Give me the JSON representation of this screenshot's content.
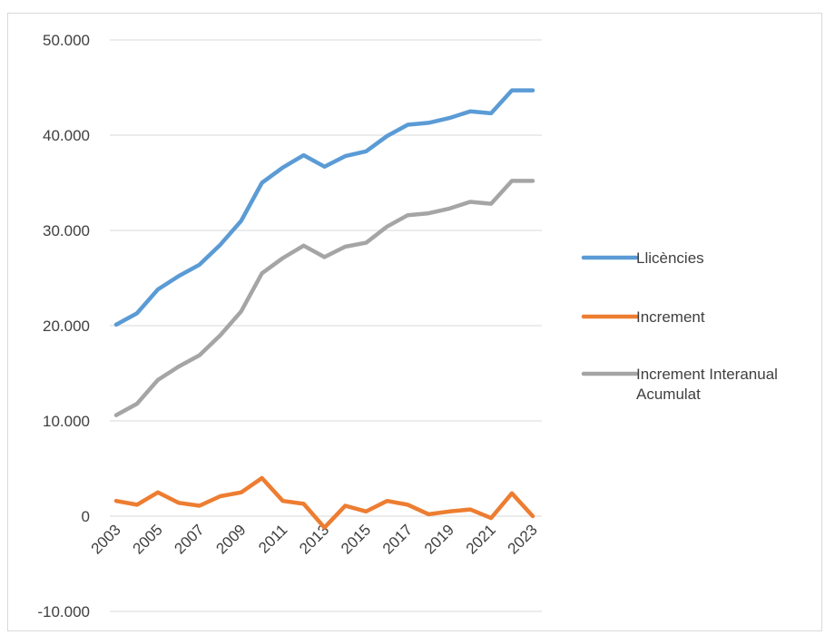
{
  "chart_data": {
    "type": "line",
    "title": "",
    "xlabel": "",
    "ylabel": "",
    "x": [
      2003,
      2004,
      2005,
      2006,
      2007,
      2008,
      2009,
      2010,
      2011,
      2012,
      2013,
      2014,
      2015,
      2016,
      2017,
      2018,
      2019,
      2020,
      2021,
      2022,
      2023
    ],
    "x_tick_labels": [
      "2003",
      "2005",
      "2007",
      "2009",
      "2011",
      "2013",
      "2015",
      "2017",
      "2019",
      "2021",
      "2023"
    ],
    "ylim": [
      -10000,
      50000
    ],
    "y_ticks": [
      -10000,
      0,
      10000,
      20000,
      30000,
      40000,
      50000
    ],
    "y_tick_labels": [
      "-10.000",
      "0",
      "10.000",
      "20.000",
      "30.000",
      "40.000",
      "50.000"
    ],
    "grid": "horizontal",
    "legend_position": "right",
    "series": [
      {
        "name": "Llicències",
        "color": "#5b9bd5",
        "values": [
          20100,
          21300,
          23800,
          25200,
          26400,
          28500,
          31000,
          35000,
          36600,
          37900,
          36700,
          37800,
          38300,
          39900,
          41100,
          41300,
          41800,
          42500,
          42300,
          44700,
          44700
        ]
      },
      {
        "name": "Increment",
        "color": "#ed7d31",
        "values": [
          1600,
          1200,
          2500,
          1400,
          1100,
          2100,
          2500,
          4000,
          1600,
          1300,
          -1200,
          1100,
          500,
          1600,
          1200,
          200,
          500,
          700,
          -200,
          2400,
          0
        ]
      },
      {
        "name": "Increment Interanual Acumulat",
        "legend_lines": [
          "Increment Interanual",
          "Acumulat"
        ],
        "color": "#a5a5a5",
        "values": [
          10600,
          11800,
          14300,
          15700,
          16900,
          19000,
          21500,
          25500,
          27100,
          28400,
          27200,
          28300,
          28700,
          30400,
          31600,
          31800,
          32300,
          33000,
          32800,
          35200,
          35200
        ]
      }
    ]
  }
}
